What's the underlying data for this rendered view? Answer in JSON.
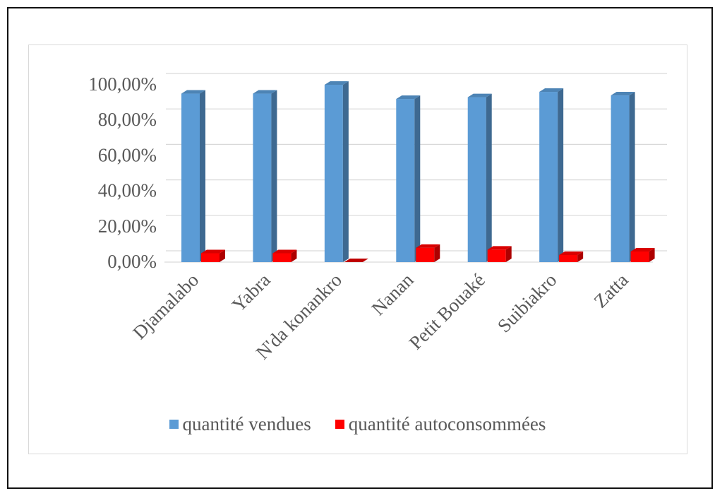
{
  "chart_data": {
    "type": "bar",
    "style": "3d-clustered-column",
    "categories": [
      "Djamalabo",
      "Yabra",
      "N'da konankro",
      "Nanan",
      "Petit Bouaké",
      "Suibiakro",
      "Zatta"
    ],
    "series": [
      {
        "name": "quantité vendues",
        "color": "#5b9bd5",
        "values": [
          95,
          95,
          100,
          92,
          93,
          96,
          94
        ]
      },
      {
        "name": "quantité autoconsommées",
        "color": "#ff0000",
        "values": [
          5,
          5,
          0,
          8,
          7,
          4,
          6
        ]
      }
    ],
    "y_ticks": [
      "0,00%",
      "20,00%",
      "40,00%",
      "60,00%",
      "80,00%",
      "100,00%"
    ],
    "ylim": [
      0,
      100
    ],
    "title": "",
    "xlabel": "",
    "ylabel": "",
    "grid": true,
    "legend_position": "bottom"
  }
}
